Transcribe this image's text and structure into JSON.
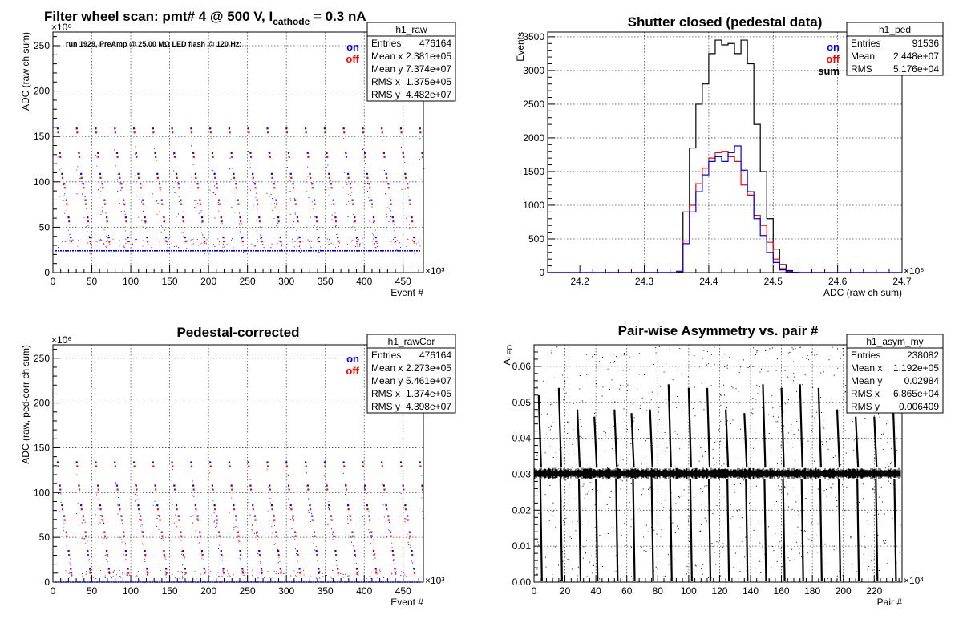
{
  "chart_data": [
    {
      "id": "raw",
      "type": "scatter",
      "title": "Filter wheel scan: pmt#   4 @   500 V, I",
      "title_sub": "cathode",
      "title_tail": "  = 0.3 nA",
      "annotation": "run 1929, PreAmp @ 25.00 MΩ LED flash @  120 Hz:",
      "xlabel": "Event #",
      "ylabel": "ADC (raw ch sum)",
      "x_exponent": "×10³",
      "y_exponent": "×10⁶",
      "xlim": [
        0,
        476
      ],
      "ylim": [
        0,
        265
      ],
      "xticks": [
        0,
        50,
        100,
        150,
        200,
        250,
        300,
        350,
        400,
        450
      ],
      "yticks": [
        0,
        50,
        100,
        150,
        200,
        250
      ],
      "legend": [
        {
          "label": "on",
          "color": "#0000ff"
        },
        {
          "label": "off",
          "color": "#ff0000"
        }
      ],
      "stats": {
        "name": "h1_raw",
        "rows": [
          [
            "Entries",
            "476164"
          ],
          [
            "Mean x",
            "2.381e+05"
          ],
          [
            "Mean y",
            "7.374e+07"
          ],
          [
            "RMS x",
            "1.375e+05"
          ],
          [
            "RMS y",
            "4.482e+07"
          ]
        ]
      },
      "cycle_start": 5,
      "cycle_period": 24.5,
      "step_width": 2.8,
      "levels": [
        158,
        131,
        108,
        97,
        79,
        60,
        38
      ],
      "baseline": 24
    },
    {
      "id": "ped",
      "type": "histogram",
      "title": "Shutter closed (pedestal data)",
      "xlabel": "ADC (raw ch sum)",
      "ylabel": "Events",
      "x_exponent": "×10⁶",
      "xlim": [
        24.15,
        24.7
      ],
      "ylim": [
        0,
        3570
      ],
      "xticks": [
        24.2,
        24.3,
        24.4,
        24.5,
        24.6,
        24.7
      ],
      "yticks": [
        0,
        500,
        1000,
        1500,
        2000,
        2500,
        3000,
        3500
      ],
      "legend": [
        {
          "label": "on",
          "color": "#0000ff"
        },
        {
          "label": "off",
          "color": "#ff0000"
        },
        {
          "label": "sum",
          "color": "#000000"
        }
      ],
      "stats": {
        "name": "h1_ped",
        "rows": [
          [
            "Entries",
            "91536"
          ],
          [
            "Mean",
            "2.448e+07"
          ],
          [
            "RMS",
            "5.176e+04"
          ]
        ]
      },
      "bin_start": 24.34,
      "bin_width": 0.01,
      "sum": [
        0,
        20,
        900,
        1850,
        2500,
        2800,
        3250,
        3450,
        3380,
        3400,
        3250,
        3450,
        3100,
        2200,
        1500,
        800,
        350,
        120,
        30,
        5
      ],
      "on": [
        0,
        10,
        430,
        900,
        1200,
        1450,
        1650,
        1720,
        1650,
        1780,
        1880,
        1520,
        1200,
        800,
        550,
        300,
        150,
        40,
        10,
        0
      ],
      "off": [
        0,
        15,
        470,
        1000,
        1320,
        1550,
        1700,
        1780,
        1800,
        1720,
        1650,
        1300,
        1150,
        850,
        700,
        450,
        200,
        60,
        15,
        0
      ]
    },
    {
      "id": "rawcor",
      "type": "scatter",
      "title": "Pedestal-corrected",
      "xlabel": "Event #",
      "ylabel": "ADC (raw, ped-corr ch sum)",
      "x_exponent": "×10³",
      "y_exponent": "×10⁶",
      "xlim": [
        0,
        476
      ],
      "ylim": [
        0,
        265
      ],
      "xticks": [
        0,
        50,
        100,
        150,
        200,
        250,
        300,
        350,
        400,
        450
      ],
      "yticks": [
        0,
        50,
        100,
        150,
        200,
        250
      ],
      "legend": [
        {
          "label": "on",
          "color": "#0000ff"
        },
        {
          "label": "off",
          "color": "#ff0000"
        }
      ],
      "stats": {
        "name": "h1_rawCor",
        "rows": [
          [
            "Entries",
            "476164"
          ],
          [
            "Mean x",
            "2.273e+05"
          ],
          [
            "Mean y",
            "5.461e+07"
          ],
          [
            "RMS x",
            "1.374e+05"
          ],
          [
            "RMS y",
            "4.398e+07"
          ]
        ]
      },
      "cycle_start": 5,
      "cycle_period": 24.5,
      "step_width": 2.8,
      "levels": [
        133,
        107,
        85,
        73,
        55,
        34,
        14
      ],
      "baseline": 0
    },
    {
      "id": "asym",
      "type": "scatter",
      "title": "Pair-wise Asymmetry vs. pair #",
      "xlabel": "Pair #",
      "ylabel": "A",
      "ylabel_sub": "LED",
      "x_exponent": "×10³",
      "xlim": [
        0,
        238
      ],
      "ylim": [
        0,
        0.066
      ],
      "xticks": [
        0,
        20,
        40,
        60,
        80,
        100,
        120,
        140,
        160,
        180,
        200,
        220
      ],
      "yticks": [
        0,
        0.01,
        0.02,
        0.03,
        0.04,
        0.05,
        0.06
      ],
      "stats": {
        "name": "h1_asym_my",
        "rows": [
          [
            "Entries",
            "238082"
          ],
          [
            "Mean x",
            "1.192e+05"
          ],
          [
            "Mean y",
            "0.02984"
          ],
          [
            "RMS x",
            "6.865e+04"
          ],
          [
            "RMS y",
            "0.006409"
          ]
        ]
      },
      "band_center": 0.0302,
      "band_halfwidth": 0.0012,
      "spike_x": [
        3,
        16,
        28,
        39,
        52,
        63,
        75,
        87,
        100,
        112,
        124,
        136,
        148,
        160,
        172,
        184,
        196,
        208,
        220,
        232
      ],
      "spike_top": [
        0.052,
        0.054,
        0.048,
        0.046,
        0.048,
        0.047,
        0.048,
        0.055,
        0.054,
        0.054,
        0.048,
        0.047,
        0.055,
        0.054,
        0.055,
        0.054,
        0.048,
        0.046,
        0.046,
        0.052
      ]
    }
  ]
}
